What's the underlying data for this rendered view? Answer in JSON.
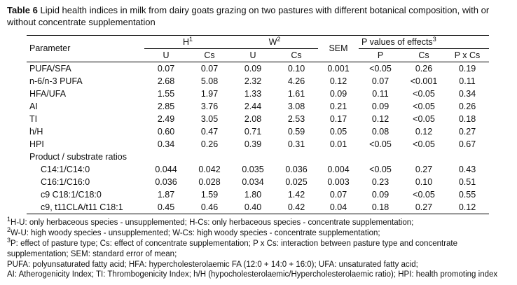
{
  "title": {
    "label": "Table 6",
    "text": "Lipid health indices in milk from dairy goats grazing on two pastures with different botanical composition, with or without concentrate supplementation"
  },
  "table": {
    "headers": {
      "parameter": "Parameter",
      "sem": "SEM",
      "group_h": {
        "label": "H",
        "sup": "1"
      },
      "group_w": {
        "label": "W",
        "sup": "2"
      },
      "group_p": {
        "label": "P values of effects",
        "sup": "3"
      },
      "sub_u1": "U",
      "sub_cs1": "Cs",
      "sub_u2": "U",
      "sub_cs2": "Cs",
      "sub_p": "P",
      "sub_cs3": "Cs",
      "sub_pxcs": "P x Cs"
    },
    "section_heading": "Product / substrate ratios",
    "rows": [
      {
        "param": "PUFA/SFA",
        "values": [
          "0.07",
          "0.07",
          "0.09",
          "0.10",
          "0.001",
          "<0.05",
          "0.26",
          "0.19"
        ]
      },
      {
        "param": "n-6/n-3 PUFA",
        "values": [
          "2.68",
          "5.08",
          "2.32",
          "4.26",
          "0.12",
          "0.07",
          "<0.001",
          "0.11"
        ]
      },
      {
        "param": "HFA/UFA",
        "values": [
          "1.55",
          "1.97",
          "1.33",
          "1.61",
          "0.09",
          "0.11",
          "<0.05",
          "0.34"
        ]
      },
      {
        "param": "AI",
        "values": [
          "2.85",
          "3.76",
          "2.44",
          "3.08",
          "0.21",
          "0.09",
          "<0.05",
          "0.26"
        ]
      },
      {
        "param": "TI",
        "values": [
          "2.49",
          "3.05",
          "2.08",
          "2.53",
          "0.17",
          "0.12",
          "<0.05",
          "0.18"
        ]
      },
      {
        "param": "h/H",
        "values": [
          "0.60",
          "0.47",
          "0.71",
          "0.59",
          "0.05",
          "0.08",
          "0.12",
          "0.27"
        ]
      },
      {
        "param": "HPI",
        "values": [
          "0.34",
          "0.26",
          "0.39",
          "0.31",
          "0.01",
          "<0.05",
          "<0.05",
          "0.67"
        ]
      },
      {
        "param": "C14:1/C14:0",
        "values": [
          "0.044",
          "0.042",
          "0.035",
          "0.036",
          "0.004",
          "<0.05",
          "0.27",
          "0.43"
        ]
      },
      {
        "param": "C16:1/C16:0",
        "values": [
          "0.036",
          "0.028",
          "0.034",
          "0.025",
          "0.003",
          "0.23",
          "0.10",
          "0.51"
        ]
      },
      {
        "param": "c9 C18:1/C18:0",
        "values": [
          "1.87",
          "1.59",
          "1.80",
          "1.42",
          "0.07",
          "0.09",
          "<0.05",
          "0.55"
        ]
      },
      {
        "param": "c9, t11CLA/t11 C18:1",
        "values": [
          "0.45",
          "0.46",
          "0.40",
          "0.42",
          "0.04",
          "0.18",
          "0.27",
          "0.12"
        ]
      }
    ]
  },
  "footnotes": [
    {
      "sup": "1",
      "text": "H-U: only herbaceous species - unsupplemented; H-Cs: only herbaceous species - concentrate supplementation;"
    },
    {
      "sup": "2",
      "text": "W-U: high woody species - unsupplemented; W-Cs: high woody species - concentrate supplementation;"
    },
    {
      "sup": "3",
      "text": "P: effect of pasture type; Cs: effect of concentrate supplementation; P x Cs: interaction between pasture type and concentrate supplementation; SEM: standard error of mean;"
    },
    {
      "sup": "",
      "text": "PUFA: polyunsaturated fatty acid; HFA: hypercholesterolaemic FA (12:0 + 14:0 + 16:0); UFA: unsaturated fatty acid;"
    },
    {
      "sup": "",
      "text": "AI: Atherogenicity Index; TI: Thrombogenicity Index; h/H (hypocholesterolaemic/Hypercholesterolaemic ratio); HPI: health promoting index"
    }
  ]
}
